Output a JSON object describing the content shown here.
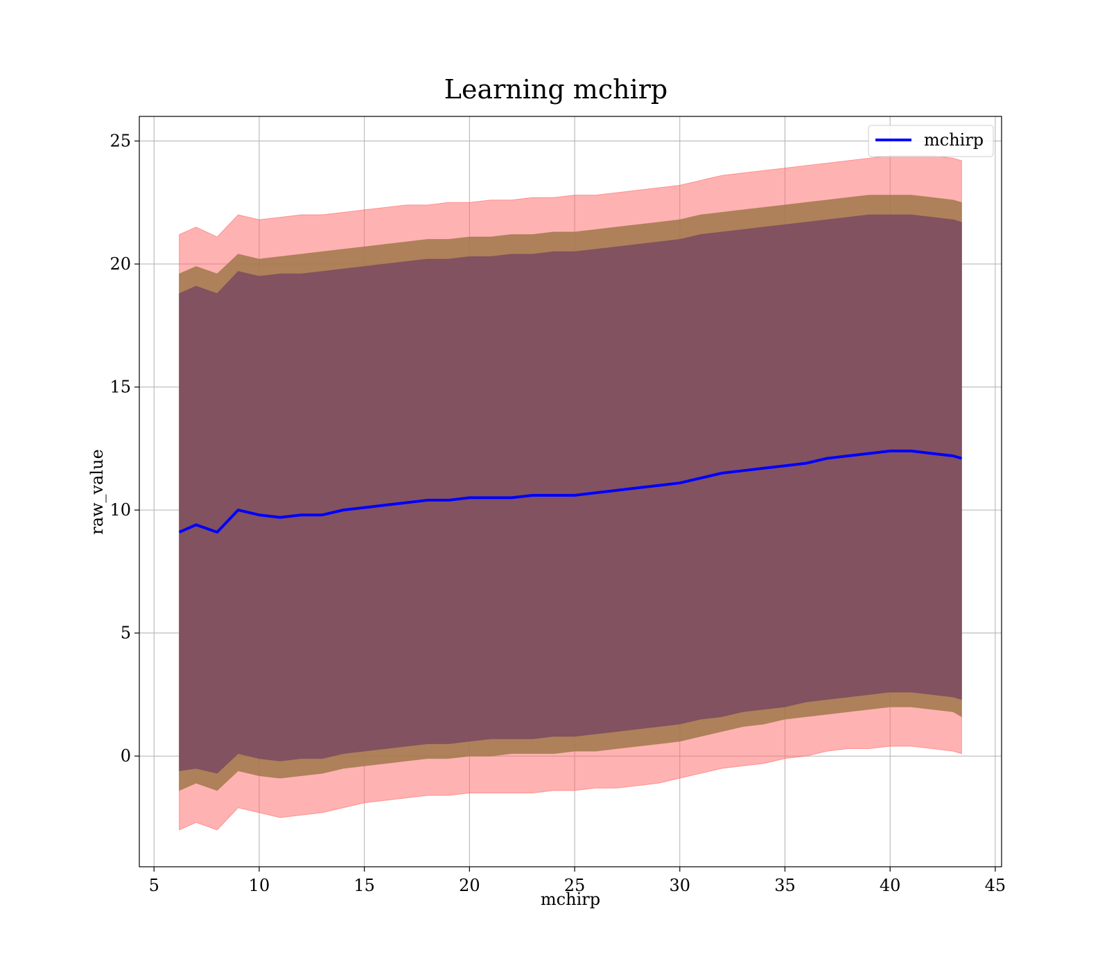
{
  "chart_data": {
    "type": "area",
    "title": "Learning mchirp",
    "xlabel": "mchirp",
    "ylabel": "raw_value",
    "xlim": [
      4.3,
      45.3
    ],
    "ylim": [
      -4.5,
      26
    ],
    "xticks": [
      5,
      10,
      15,
      20,
      25,
      30,
      35,
      40,
      45
    ],
    "yticks": [
      0,
      5,
      10,
      15,
      20,
      25
    ],
    "grid": true,
    "legend_position": "top-right",
    "legend": [
      {
        "label": "mchirp",
        "color": "#0000ff"
      }
    ],
    "colors": {
      "line": "#0000ff",
      "band_outer": "#ff6666",
      "band_middle": "#a0784a",
      "band_inner": "#7a4a62",
      "grid": "#b0b0b0"
    },
    "series": [
      {
        "name": "mchirp",
        "x": [
          6.2,
          7.0,
          8.0,
          9.0,
          10.0,
          11.0,
          12.0,
          13.0,
          14.0,
          15.0,
          16.0,
          17.0,
          18.0,
          19.0,
          20.0,
          21.0,
          22.0,
          23.0,
          24.0,
          25.0,
          26.0,
          27.0,
          28.0,
          29.0,
          30.0,
          31.0,
          32.0,
          33.0,
          34.0,
          35.0,
          36.0,
          37.0,
          38.0,
          39.0,
          40.0,
          41.0,
          42.0,
          43.0,
          43.4
        ],
        "y": [
          9.1,
          9.4,
          9.1,
          10.0,
          9.8,
          9.7,
          9.8,
          9.8,
          10.0,
          10.1,
          10.2,
          10.3,
          10.4,
          10.4,
          10.5,
          10.5,
          10.5,
          10.6,
          10.6,
          10.6,
          10.7,
          10.8,
          10.9,
          11.0,
          11.1,
          11.3,
          11.5,
          11.6,
          11.7,
          11.8,
          11.9,
          12.1,
          12.2,
          12.3,
          12.4,
          12.4,
          12.3,
          12.2,
          12.1
        ]
      }
    ],
    "bands": [
      {
        "level": "outer",
        "x": [
          6.2,
          7.0,
          8.0,
          9.0,
          10.0,
          11.0,
          12.0,
          13.0,
          14.0,
          15.0,
          16.0,
          17.0,
          18.0,
          19.0,
          20.0,
          21.0,
          22.0,
          23.0,
          24.0,
          25.0,
          26.0,
          27.0,
          28.0,
          29.0,
          30.0,
          31.0,
          32.0,
          33.0,
          34.0,
          35.0,
          36.0,
          37.0,
          38.0,
          39.0,
          40.0,
          41.0,
          42.0,
          43.0,
          43.4
        ],
        "lower": [
          -3.0,
          -2.7,
          -3.0,
          -2.1,
          -2.3,
          -2.5,
          -2.4,
          -2.3,
          -2.1,
          -1.9,
          -1.8,
          -1.7,
          -1.6,
          -1.6,
          -1.5,
          -1.5,
          -1.5,
          -1.5,
          -1.4,
          -1.4,
          -1.3,
          -1.3,
          -1.2,
          -1.1,
          -0.9,
          -0.7,
          -0.5,
          -0.4,
          -0.3,
          -0.1,
          0.0,
          0.2,
          0.3,
          0.3,
          0.4,
          0.4,
          0.3,
          0.2,
          0.1
        ],
        "upper": [
          21.2,
          21.5,
          21.1,
          22.0,
          21.8,
          21.9,
          22.0,
          22.0,
          22.1,
          22.2,
          22.3,
          22.4,
          22.4,
          22.5,
          22.5,
          22.6,
          22.6,
          22.7,
          22.7,
          22.8,
          22.8,
          22.9,
          23.0,
          23.1,
          23.2,
          23.4,
          23.6,
          23.7,
          23.8,
          23.9,
          24.0,
          24.1,
          24.2,
          24.3,
          24.4,
          24.4,
          24.4,
          24.3,
          24.2
        ]
      },
      {
        "level": "middle",
        "x": [
          6.2,
          7.0,
          8.0,
          9.0,
          10.0,
          11.0,
          12.0,
          13.0,
          14.0,
          15.0,
          16.0,
          17.0,
          18.0,
          19.0,
          20.0,
          21.0,
          22.0,
          23.0,
          24.0,
          25.0,
          26.0,
          27.0,
          28.0,
          29.0,
          30.0,
          31.0,
          32.0,
          33.0,
          34.0,
          35.0,
          36.0,
          37.0,
          38.0,
          39.0,
          40.0,
          41.0,
          42.0,
          43.0,
          43.4
        ],
        "lower": [
          -1.4,
          -1.1,
          -1.4,
          -0.6,
          -0.8,
          -0.9,
          -0.8,
          -0.7,
          -0.5,
          -0.4,
          -0.3,
          -0.2,
          -0.1,
          -0.1,
          0.0,
          0.0,
          0.1,
          0.1,
          0.1,
          0.2,
          0.2,
          0.3,
          0.4,
          0.5,
          0.6,
          0.8,
          1.0,
          1.2,
          1.3,
          1.5,
          1.6,
          1.7,
          1.8,
          1.9,
          2.0,
          2.0,
          1.9,
          1.8,
          1.6
        ],
        "upper": [
          19.6,
          19.9,
          19.6,
          20.4,
          20.2,
          20.3,
          20.4,
          20.5,
          20.6,
          20.7,
          20.8,
          20.9,
          21.0,
          21.0,
          21.1,
          21.1,
          21.2,
          21.2,
          21.3,
          21.3,
          21.4,
          21.5,
          21.6,
          21.7,
          21.8,
          22.0,
          22.1,
          22.2,
          22.3,
          22.4,
          22.5,
          22.6,
          22.7,
          22.8,
          22.8,
          22.8,
          22.7,
          22.6,
          22.5
        ]
      },
      {
        "level": "inner",
        "x": [
          6.2,
          7.0,
          8.0,
          9.0,
          10.0,
          11.0,
          12.0,
          13.0,
          14.0,
          15.0,
          16.0,
          17.0,
          18.0,
          19.0,
          20.0,
          21.0,
          22.0,
          23.0,
          24.0,
          25.0,
          26.0,
          27.0,
          28.0,
          29.0,
          30.0,
          31.0,
          32.0,
          33.0,
          34.0,
          35.0,
          36.0,
          37.0,
          38.0,
          39.0,
          40.0,
          41.0,
          42.0,
          43.0,
          43.4
        ],
        "lower": [
          -0.6,
          -0.5,
          -0.7,
          0.1,
          -0.1,
          -0.2,
          -0.1,
          -0.1,
          0.1,
          0.2,
          0.3,
          0.4,
          0.5,
          0.5,
          0.6,
          0.7,
          0.7,
          0.7,
          0.8,
          0.8,
          0.9,
          1.0,
          1.1,
          1.2,
          1.3,
          1.5,
          1.6,
          1.8,
          1.9,
          2.0,
          2.2,
          2.3,
          2.4,
          2.5,
          2.6,
          2.6,
          2.5,
          2.4,
          2.3
        ],
        "upper": [
          18.8,
          19.1,
          18.8,
          19.7,
          19.5,
          19.6,
          19.6,
          19.7,
          19.8,
          19.9,
          20.0,
          20.1,
          20.2,
          20.2,
          20.3,
          20.3,
          20.4,
          20.4,
          20.5,
          20.5,
          20.6,
          20.7,
          20.8,
          20.9,
          21.0,
          21.2,
          21.3,
          21.4,
          21.5,
          21.6,
          21.7,
          21.8,
          21.9,
          22.0,
          22.0,
          22.0,
          21.9,
          21.8,
          21.7
        ]
      }
    ]
  }
}
